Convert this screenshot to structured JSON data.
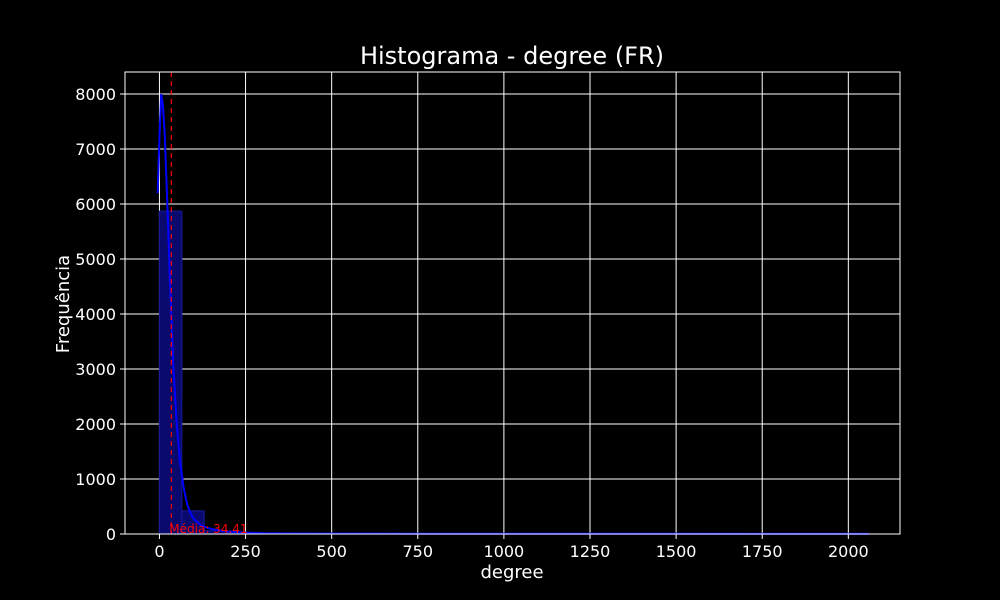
{
  "chart_data": {
    "type": "bar",
    "title": "Histograma - degree (FR)",
    "xlabel": "degree",
    "ylabel": "Frequência",
    "xlim": [
      -100,
      2150
    ],
    "ylim": [
      0,
      8400
    ],
    "xticks": [
      "0",
      "250",
      "500",
      "750",
      "1000",
      "1250",
      "1500",
      "1750",
      "2000"
    ],
    "yticks": [
      "0",
      "1000",
      "2000",
      "3000",
      "4000",
      "5000",
      "6000",
      "7000",
      "8000"
    ],
    "grid": true,
    "bins": [
      {
        "start": 0,
        "end": 65,
        "value": 5870
      },
      {
        "start": 65,
        "end": 130,
        "value": 420
      },
      {
        "start": 130,
        "end": 195,
        "value": 60
      },
      {
        "start": 195,
        "end": 260,
        "value": 25
      },
      {
        "start": 260,
        "end": 325,
        "value": 12
      },
      {
        "start": 325,
        "end": 390,
        "value": 8
      },
      {
        "start": 390,
        "end": 455,
        "value": 5
      },
      {
        "start": 455,
        "end": 520,
        "value": 4
      },
      {
        "start": 520,
        "end": 585,
        "value": 3
      },
      {
        "start": 585,
        "end": 650,
        "value": 2
      },
      {
        "start": 650,
        "end": 715,
        "value": 2
      },
      {
        "start": 715,
        "end": 780,
        "value": 1
      },
      {
        "start": 780,
        "end": 845,
        "value": 1
      },
      {
        "start": 845,
        "end": 910,
        "value": 1
      },
      {
        "start": 910,
        "end": 975,
        "value": 1
      },
      {
        "start": 975,
        "end": 1040,
        "value": 1
      },
      {
        "start": 1040,
        "end": 1105,
        "value": 1
      },
      {
        "start": 1105,
        "end": 1170,
        "value": 1
      },
      {
        "start": 1170,
        "end": 1235,
        "value": 1
      },
      {
        "start": 1235,
        "end": 1300,
        "value": 1
      },
      {
        "start": 1300,
        "end": 1365,
        "value": 1
      },
      {
        "start": 1365,
        "end": 1430,
        "value": 1
      },
      {
        "start": 1430,
        "end": 1495,
        "value": 1
      },
      {
        "start": 1495,
        "end": 1560,
        "value": 1
      },
      {
        "start": 1560,
        "end": 1625,
        "value": 1
      },
      {
        "start": 1625,
        "end": 1690,
        "value": 1
      },
      {
        "start": 1690,
        "end": 1755,
        "value": 1
      },
      {
        "start": 1755,
        "end": 1820,
        "value": 1
      },
      {
        "start": 1820,
        "end": 1885,
        "value": 1
      },
      {
        "start": 1885,
        "end": 1950,
        "value": 1
      },
      {
        "start": 1950,
        "end": 2015,
        "value": 1
      },
      {
        "start": 2015,
        "end": 2080,
        "value": 1
      }
    ],
    "kde": {
      "x": [
        -5,
        0,
        5,
        10,
        15,
        20,
        25,
        30,
        35,
        40,
        50,
        60,
        70,
        80,
        90,
        100,
        120,
        140,
        160,
        180,
        200,
        250,
        300,
        400,
        500,
        750,
        1000,
        1500,
        2060
      ],
      "y": [
        6200,
        7200,
        8000,
        7800,
        7300,
        6500,
        5600,
        4700,
        3900,
        3100,
        2000,
        1300,
        850,
        550,
        380,
        270,
        160,
        110,
        80,
        60,
        45,
        25,
        15,
        10,
        8,
        5,
        4,
        3,
        2
      ]
    },
    "mean": {
      "value": 34.41,
      "label": "Média: 34.41"
    },
    "colors": {
      "background": "#000000",
      "text": "#ffffff",
      "grid": "#ffffff",
      "bar_fill": "#0a0a6e",
      "bar_edge": "#1a1aa0",
      "kde_line": "#0000ff",
      "mean_line": "#ff0000"
    }
  }
}
